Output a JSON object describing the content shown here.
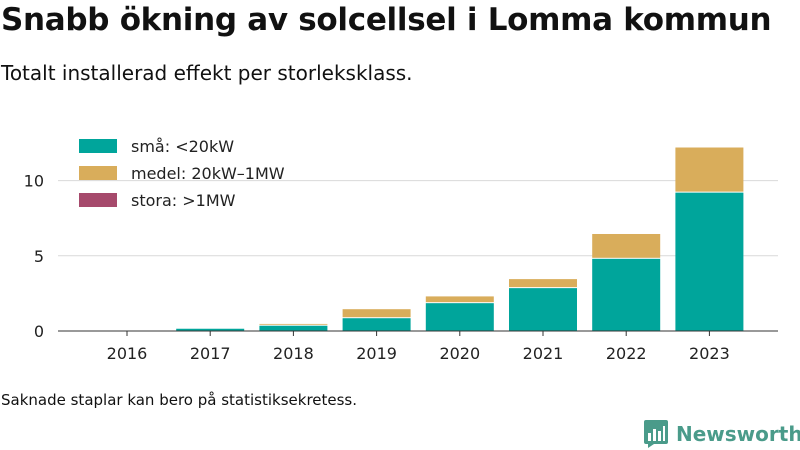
{
  "title": "Snabb ökning av solcellsel i Lomma kommun",
  "subtitle": "Totalt installerad effekt per storleksklass.",
  "footnote": "Saknade staplar kan bero på statistiksekretess.",
  "brand": {
    "name": "Newsworthy",
    "icon": "bar-chart-icon",
    "color": "#4a9b8a"
  },
  "chart_data": {
    "type": "bar",
    "stacked": true,
    "categories": [
      "2016",
      "2017",
      "2018",
      "2019",
      "2020",
      "2021",
      "2022",
      "2023"
    ],
    "series": [
      {
        "name": "små: <20kW",
        "color": "#00a59b",
        "values": [
          0.02,
          0.15,
          0.35,
          0.85,
          1.85,
          2.85,
          4.8,
          9.2
        ]
      },
      {
        "name": "medel: 20kW–1MW",
        "color": "#d9ad5b",
        "values": [
          0,
          0,
          0.12,
          0.6,
          0.45,
          0.6,
          1.65,
          3.0
        ]
      },
      {
        "name": "stora: >1MW",
        "color": "#a64a6c",
        "values": [
          0,
          0,
          0,
          0,
          0,
          0,
          0,
          0
        ]
      }
    ],
    "yticks": [
      0,
      5,
      10
    ],
    "ylim": [
      0,
      12.5
    ],
    "grid": true,
    "legend_position": "top-left"
  }
}
